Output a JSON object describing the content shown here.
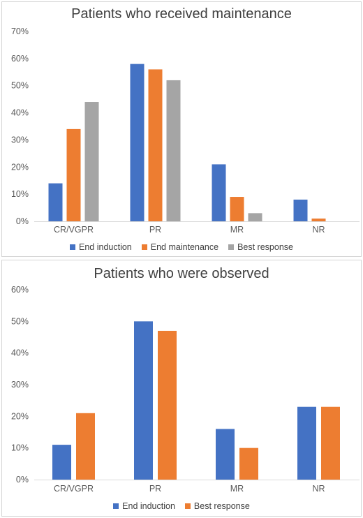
{
  "chart_data": [
    {
      "type": "bar",
      "title": "Patients who received maintenance",
      "categories": [
        "CR/VGPR",
        "PR",
        "MR",
        "NR"
      ],
      "series": [
        {
          "name": "End induction",
          "values": [
            14,
            58,
            21,
            8
          ],
          "color": "#4472C4"
        },
        {
          "name": "End maintenance",
          "values": [
            34,
            56,
            9,
            1
          ],
          "color": "#ED7D31"
        },
        {
          "name": "Best response",
          "values": [
            44,
            52,
            3,
            0
          ],
          "color": "#A5A5A5"
        }
      ],
      "ylim": [
        0,
        70
      ],
      "yticks": [
        "0%",
        "10%",
        "20%",
        "30%",
        "40%",
        "50%",
        "60%",
        "70%"
      ],
      "xlabel": "",
      "ylabel": "",
      "grid": false,
      "legend": "bottom"
    },
    {
      "type": "bar",
      "title": "Patients who were observed",
      "categories": [
        "CR/VGPR",
        "PR",
        "MR",
        "NR"
      ],
      "series": [
        {
          "name": "End induction",
          "values": [
            11,
            50,
            16,
            23
          ],
          "color": "#4472C4"
        },
        {
          "name": "Best response",
          "values": [
            21,
            47,
            10,
            23
          ],
          "color": "#ED7D31"
        }
      ],
      "ylim": [
        0,
        60
      ],
      "yticks": [
        "0%",
        "10%",
        "20%",
        "30%",
        "40%",
        "50%",
        "60%"
      ],
      "xlabel": "",
      "ylabel": "",
      "grid": false,
      "legend": "bottom"
    }
  ]
}
